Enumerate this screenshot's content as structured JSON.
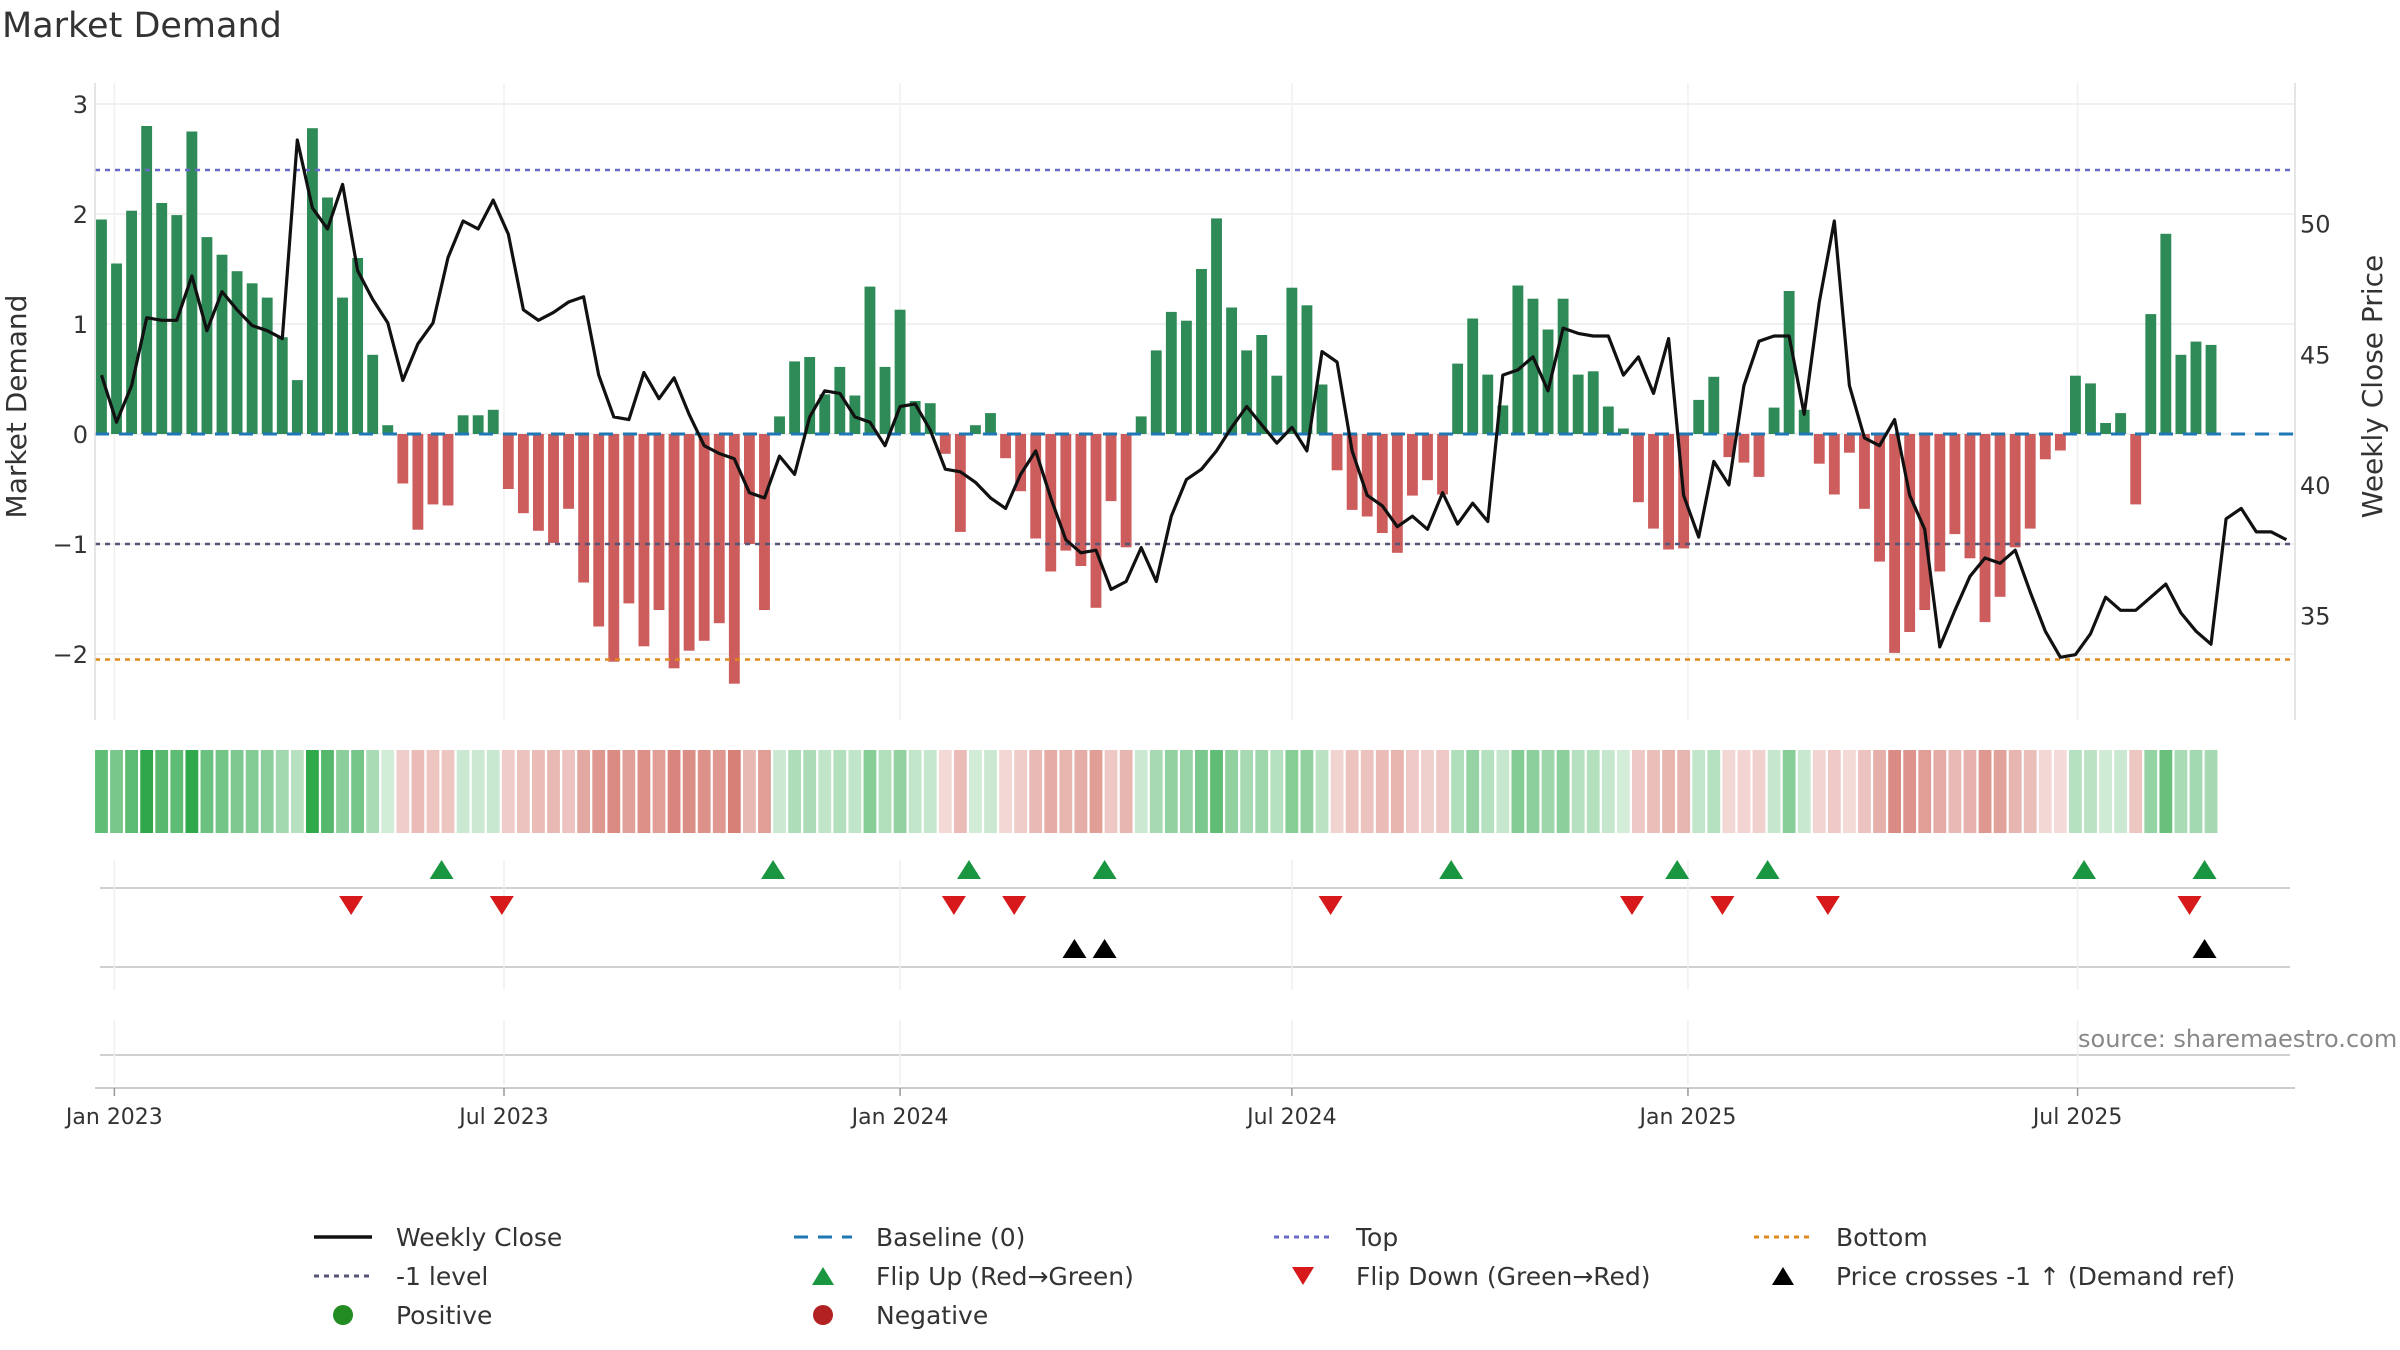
{
  "title": "Market Demand",
  "source": "source: sharemaestro.com",
  "colors": {
    "positive_bar": "#2e8b57",
    "negative_bar": "#cd5c5c",
    "price_line": "#111111",
    "baseline": "#1f77b4",
    "top": "#6a6ac8",
    "minus_one": "#555577",
    "bottom": "#e08a1e",
    "flip_up": "#1a9641",
    "flip_down": "#d7191c",
    "cross": "#000000"
  },
  "legend": [
    {
      "key": "weekly_close",
      "label": "Weekly Close",
      "symbol": "solid-line",
      "color": "#111111"
    },
    {
      "key": "baseline",
      "label": "Baseline (0)",
      "symbol": "dashed-line",
      "color": "#1f77b4"
    },
    {
      "key": "top",
      "label": "Top",
      "symbol": "dotted-line",
      "color": "#6a6ac8"
    },
    {
      "key": "bottom",
      "label": "Bottom",
      "symbol": "dotted-line",
      "color": "#e08a1e"
    },
    {
      "key": "minus_one",
      "label": "-1 level",
      "symbol": "dotted-line",
      "color": "#555577"
    },
    {
      "key": "flip_up",
      "label": "Flip Up (Red→Green)",
      "symbol": "triangle-up",
      "color": "#1a9641"
    },
    {
      "key": "flip_down",
      "label": "Flip Down (Green→Red)",
      "symbol": "triangle-down",
      "color": "#d7191c"
    },
    {
      "key": "price_cross",
      "label": "Price crosses -1 ↑ (Demand ref)",
      "symbol": "triangle-up",
      "color": "#000000"
    },
    {
      "key": "positive",
      "label": "Positive",
      "symbol": "circle",
      "color": "#228b22"
    },
    {
      "key": "negative",
      "label": "Negative",
      "symbol": "circle",
      "color": "#b22222"
    }
  ],
  "chart_data": {
    "type": "bar",
    "title": "Market Demand",
    "xlabel": "",
    "ylabel": "Market Demand",
    "y2label": "Weekly Close Price",
    "ylim": [
      -2.6,
      3.1
    ],
    "y2lim": [
      31,
      55
    ],
    "yticks": [
      3,
      2,
      1,
      0,
      -1,
      -2
    ],
    "ytick_labels": [
      "3",
      "2",
      "1",
      "0",
      "−1",
      "−2"
    ],
    "y2ticks": [
      50,
      45,
      40,
      35
    ],
    "y2tick_labels": [
      "50",
      "45",
      "40",
      "35"
    ],
    "x_start": "2022-12-23",
    "x_end": "2025-10-10",
    "xticks": [
      "2023-01-01",
      "2023-07-01",
      "2024-01-01",
      "2024-07-01",
      "2025-01-01",
      "2025-07-01"
    ],
    "xtick_labels": [
      "Jan 2023",
      "Jul 2023",
      "Jan 2024",
      "Jul 2024",
      "Jan 2025",
      "Jul 2025"
    ],
    "start_week": "2022-12-26",
    "demand": [
      1.95,
      1.55,
      2.03,
      2.8,
      2.1,
      1.99,
      2.75,
      1.79,
      1.63,
      1.48,
      1.37,
      1.24,
      0.88,
      0.49,
      2.78,
      2.15,
      1.24,
      1.6,
      0.72,
      0.08,
      -0.45,
      -0.87,
      -0.64,
      -0.65,
      0.17,
      0.17,
      0.22,
      -0.5,
      -0.72,
      -0.88,
      -0.99,
      -0.68,
      -1.35,
      -1.75,
      -2.07,
      -1.54,
      -1.93,
      -1.6,
      -2.13,
      -1.97,
      -1.88,
      -1.72,
      -2.27,
      -1.0,
      -1.6,
      0.16,
      0.66,
      0.7,
      0.36,
      0.61,
      0.35,
      1.34,
      0.61,
      1.13,
      0.3,
      0.28,
      -0.18,
      -0.89,
      0.08,
      0.19,
      -0.22,
      -0.52,
      -0.95,
      -1.25,
      -1.06,
      -1.2,
      -1.58,
      -0.61,
      -1.03,
      0.16,
      0.76,
      1.11,
      1.03,
      1.5,
      1.96,
      1.15,
      0.76,
      0.9,
      0.53,
      1.33,
      1.17,
      0.45,
      -0.33,
      -0.69,
      -0.75,
      -0.9,
      -1.08,
      -0.56,
      -0.42,
      -0.55,
      0.64,
      1.05,
      0.54,
      0.26,
      1.35,
      1.23,
      0.95,
      1.23,
      0.54,
      0.57,
      0.25,
      0.05,
      -0.62,
      -0.86,
      -1.05,
      -1.04,
      0.31,
      0.52,
      -0.21,
      -0.26,
      -0.39,
      0.24,
      1.3,
      0.22,
      -0.27,
      -0.55,
      -0.17,
      -0.68,
      -1.16,
      -1.99,
      -1.8,
      -1.6,
      -1.25,
      -0.91,
      -1.13,
      -1.71,
      -1.48,
      -1.03,
      -0.86,
      -0.23,
      -0.15,
      0.53,
      0.46,
      0.1,
      0.19,
      -0.64,
      1.09,
      1.82,
      0.72,
      0.84,
      0.81
    ],
    "weekly_close": [
      44.2,
      42.4,
      43.8,
      46.4,
      46.3,
      46.3,
      48.0,
      45.9,
      47.4,
      46.7,
      46.1,
      45.9,
      45.6,
      53.2,
      50.6,
      49.8,
      51.5,
      48.2,
      47.1,
      46.2,
      44.0,
      45.4,
      46.2,
      48.7,
      50.1,
      49.8,
      50.9,
      49.6,
      46.7,
      46.3,
      46.6,
      47.0,
      47.2,
      44.2,
      42.6,
      42.5,
      44.3,
      43.3,
      44.1,
      42.7,
      41.5,
      41.2,
      41.0,
      39.7,
      39.5,
      41.1,
      40.4,
      42.6,
      43.6,
      43.5,
      42.6,
      42.4,
      41.5,
      43.0,
      43.1,
      42.1,
      40.6,
      40.5,
      40.1,
      39.5,
      39.1,
      40.4,
      41.3,
      39.5,
      37.9,
      37.4,
      37.5,
      36.0,
      36.3,
      37.6,
      36.3,
      38.8,
      40.2,
      40.6,
      41.3,
      42.2,
      43.0,
      42.3,
      41.6,
      42.2,
      41.3,
      45.1,
      44.7,
      41.3,
      39.6,
      39.2,
      38.4,
      38.8,
      38.3,
      39.7,
      38.5,
      39.3,
      38.6,
      44.2,
      44.4,
      44.9,
      43.6,
      46.0,
      45.8,
      45.7,
      45.7,
      44.2,
      44.9,
      43.5,
      45.6,
      39.6,
      38.0,
      40.9,
      40.0,
      43.8,
      45.5,
      45.7,
      45.7,
      42.7,
      47.0,
      50.1,
      43.8,
      41.8,
      41.5,
      42.5,
      39.6,
      38.3,
      33.8,
      35.2,
      36.5,
      37.2,
      37.0,
      37.5,
      35.9,
      34.4,
      33.4,
      33.5,
      34.3,
      35.7,
      35.2,
      35.2,
      35.7,
      36.2,
      35.1,
      34.4,
      33.9,
      38.7,
      39.1,
      38.2,
      38.2,
      37.9
    ],
    "flip_up": [
      "2023-06-02",
      "2023-11-03",
      "2024-02-02",
      "2024-04-05",
      "2024-09-13",
      "2024-12-27",
      "2025-02-07",
      "2025-07-04",
      "2025-08-29"
    ],
    "flip_down": [
      "2023-04-21",
      "2023-06-30",
      "2024-01-26",
      "2024-02-23",
      "2024-07-19",
      "2024-12-06",
      "2025-01-17",
      "2025-03-07",
      "2025-08-22"
    ],
    "price_crosses": [
      "2024-03-22",
      "2024-04-05",
      "2025-08-29"
    ]
  }
}
